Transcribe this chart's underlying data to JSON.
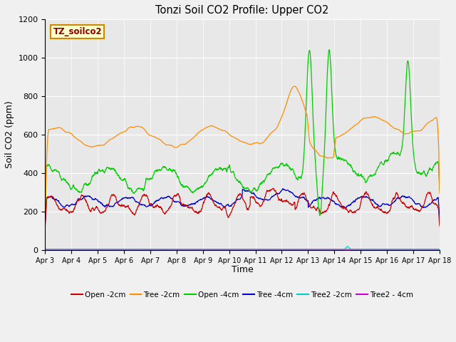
{
  "title": "Tonzi Soil CO2 Profile: Upper CO2",
  "ylabel": "Soil CO2 (ppm)",
  "xlabel": "Time",
  "ylim": [
    0,
    1200
  ],
  "legend_label": "TZ_soilco2",
  "series_colors": {
    "open2cm": "#cc0000",
    "tree2cm": "#ff8c00",
    "open4cm": "#00cc00",
    "tree4cm": "#0000cc",
    "tree2_2cm": "#00cccc",
    "tree2_4cm": "#cc00cc"
  },
  "xtick_labels": [
    "Apr 3",
    "Apr 4",
    "Apr 5",
    "Apr 6",
    "Apr 7",
    "Apr 8",
    "Apr 9",
    "Apr 10",
    "Apr 11",
    "Apr 12",
    "Apr 13",
    "Apr 14",
    "Apr 15",
    "Apr 16",
    "Apr 17",
    "Apr 18"
  ],
  "ytick_labels": [
    0,
    200,
    400,
    600,
    800,
    1000,
    1200
  ],
  "fig_bg": "#f0f0f0",
  "ax_bg": "#e8e8e8"
}
